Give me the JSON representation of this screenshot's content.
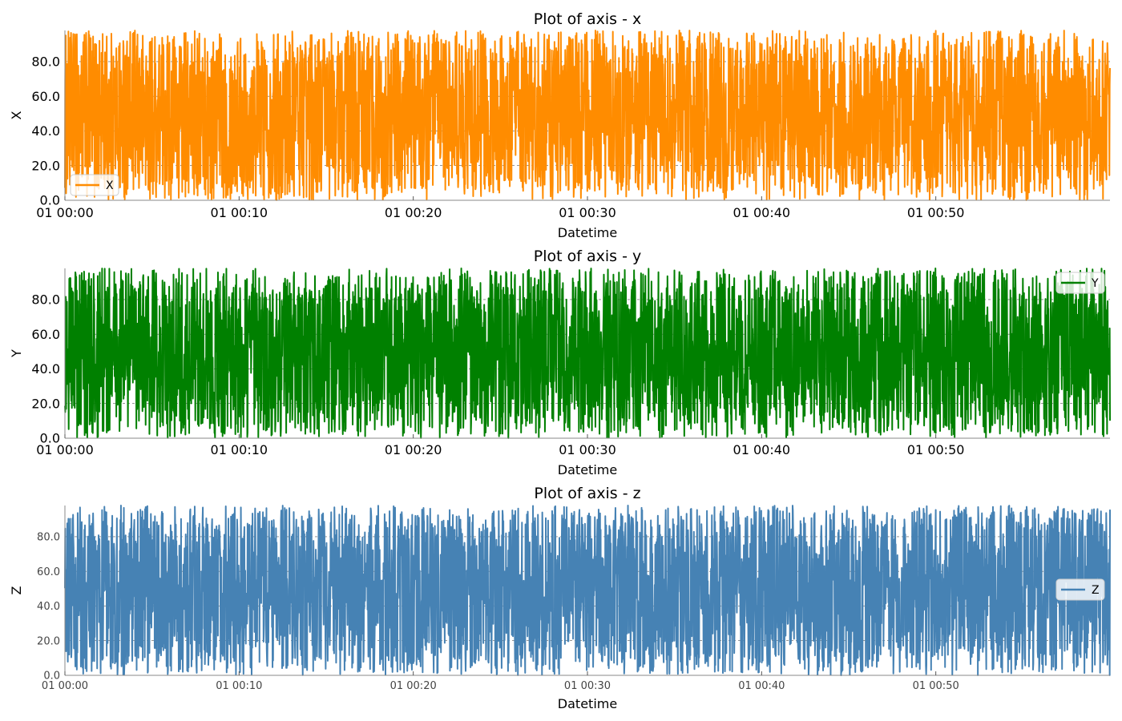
{
  "chart_data": [
    {
      "type": "line",
      "title": "Plot of axis - x",
      "xlabel": "Datetime",
      "ylabel": "X",
      "xticks": [
        "01 00:00",
        "01 00:10",
        "01 00:20",
        "01 00:30",
        "01 00:40",
        "01 00:50"
      ],
      "xlim_minutes": [
        0,
        60
      ],
      "yticks": [
        "0.0",
        "20.0",
        "40.0",
        "60.0",
        "80.0"
      ],
      "ylim": [
        0,
        98
      ],
      "grid": true,
      "legend_position": "lower-left",
      "series": [
        {
          "name": "X",
          "color": "#ff8c00",
          "min": 0,
          "max": 98,
          "points_per_minute": 60
        }
      ],
      "tick_font": "large"
    },
    {
      "type": "line",
      "title": "Plot of axis - y",
      "xlabel": "Datetime",
      "ylabel": "Y",
      "xticks": [
        "01 00:00",
        "01 00:10",
        "01 00:20",
        "01 00:30",
        "01 00:40",
        "01 00:50"
      ],
      "xlim_minutes": [
        0,
        60
      ],
      "yticks": [
        "0.0",
        "20.0",
        "40.0",
        "60.0",
        "80.0"
      ],
      "ylim": [
        0,
        98
      ],
      "grid": true,
      "legend_position": "upper-right",
      "series": [
        {
          "name": "Y",
          "color": "#008000",
          "min": 0,
          "max": 98,
          "points_per_minute": 60
        }
      ],
      "tick_font": "large"
    },
    {
      "type": "line",
      "title": "Plot of axis - z",
      "xlabel": "Datetime",
      "ylabel": "Z",
      "xticks": [
        "01 00:00",
        "01 00:10",
        "01 00:20",
        "01 00:30",
        "01 00:40",
        "01 00:50"
      ],
      "xlim_minutes": [
        0,
        60
      ],
      "yticks": [
        "0.0",
        "20.0",
        "40.0",
        "60.0",
        "80.0"
      ],
      "ylim": [
        0,
        98
      ],
      "grid": true,
      "legend_position": "center-right",
      "series": [
        {
          "name": "Z",
          "color": "#4682b4",
          "min": 0,
          "max": 98,
          "points_per_minute": 60
        }
      ],
      "tick_font": "small"
    }
  ]
}
